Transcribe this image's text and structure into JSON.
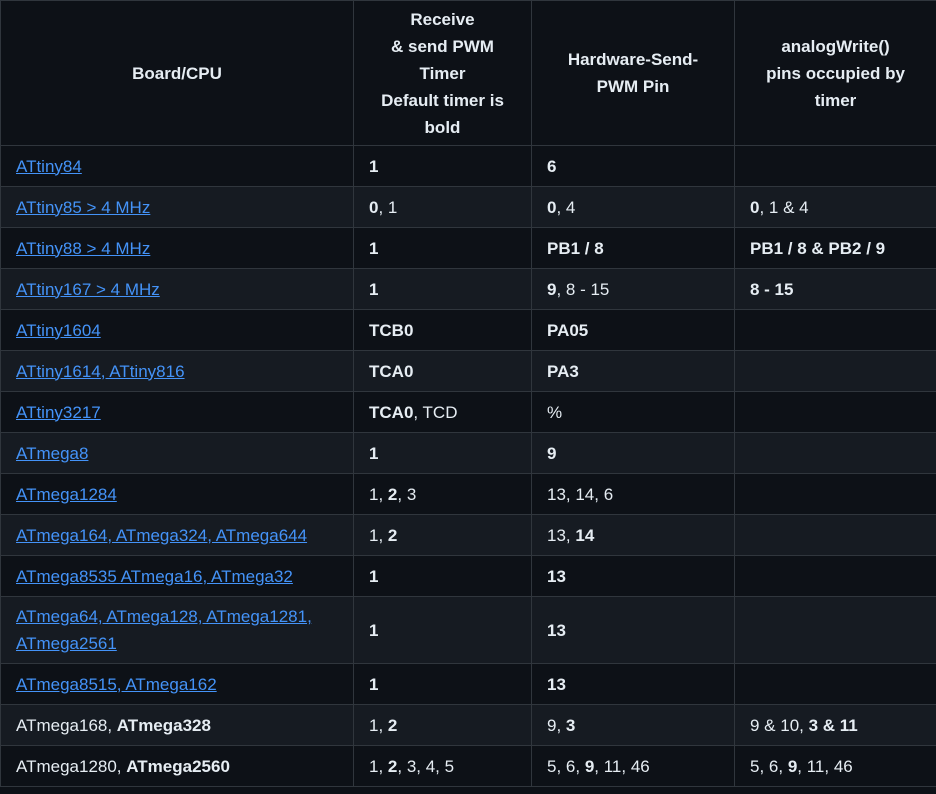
{
  "headers": [
    "Board/CPU",
    "Receive\n& send PWM\nTimer\nDefault timer is\nbold",
    "Hardware-Send-\nPWM Pin",
    "analogWrite()\npins occupied by\ntimer"
  ],
  "rows": [
    {
      "board": [
        {
          "t": "ATtiny84",
          "link": true
        }
      ],
      "timer": [
        {
          "t": "1",
          "b": true
        }
      ],
      "pin": [
        {
          "t": "6",
          "b": true
        }
      ],
      "aw": []
    },
    {
      "board": [
        {
          "t": "ATtiny85 > 4 MHz",
          "link": true
        }
      ],
      "timer": [
        {
          "t": "0",
          "b": true
        },
        {
          "t": ", 1"
        }
      ],
      "pin": [
        {
          "t": "0",
          "b": true
        },
        {
          "t": ", 4"
        }
      ],
      "aw": [
        {
          "t": "0",
          "b": true
        },
        {
          "t": ", 1 & 4"
        }
      ]
    },
    {
      "board": [
        {
          "t": "ATtiny88 > 4 MHz",
          "link": true
        }
      ],
      "timer": [
        {
          "t": "1",
          "b": true
        }
      ],
      "pin": [
        {
          "t": "PB1 / 8",
          "b": true
        }
      ],
      "aw": [
        {
          "t": "PB1 / 8 & PB2 / 9",
          "b": true
        }
      ]
    },
    {
      "board": [
        {
          "t": "ATtiny167 > 4 MHz",
          "link": true
        }
      ],
      "timer": [
        {
          "t": "1",
          "b": true
        }
      ],
      "pin": [
        {
          "t": "9",
          "b": true
        },
        {
          "t": ", 8 - 15"
        }
      ],
      "aw": [
        {
          "t": "8 - 15",
          "b": true
        }
      ]
    },
    {
      "board": [
        {
          "t": "ATtiny1604",
          "link": true
        }
      ],
      "timer": [
        {
          "t": "TCB0",
          "b": true
        }
      ],
      "pin": [
        {
          "t": "PA05",
          "b": true
        }
      ],
      "aw": []
    },
    {
      "board": [
        {
          "t": "ATtiny1614, ATtiny816",
          "link": true
        }
      ],
      "timer": [
        {
          "t": "TCA0",
          "b": true
        }
      ],
      "pin": [
        {
          "t": "PA3",
          "b": true
        }
      ],
      "aw": []
    },
    {
      "board": [
        {
          "t": "ATtiny3217",
          "link": true
        }
      ],
      "timer": [
        {
          "t": "TCA0",
          "b": true
        },
        {
          "t": ", TCD"
        }
      ],
      "pin": [
        {
          "t": "%"
        }
      ],
      "aw": []
    },
    {
      "board": [
        {
          "t": "ATmega8",
          "link": true
        }
      ],
      "timer": [
        {
          "t": "1",
          "b": true
        }
      ],
      "pin": [
        {
          "t": "9",
          "b": true
        }
      ],
      "aw": []
    },
    {
      "board": [
        {
          "t": "ATmega1284",
          "link": true
        }
      ],
      "timer": [
        {
          "t": "1, "
        },
        {
          "t": "2",
          "b": true
        },
        {
          "t": ", 3"
        }
      ],
      "pin": [
        {
          "t": "13, 14, 6"
        }
      ],
      "aw": []
    },
    {
      "board": [
        {
          "t": "ATmega164, ATmega324, ATmega644",
          "link": true
        }
      ],
      "timer": [
        {
          "t": "1, "
        },
        {
          "t": "2",
          "b": true
        }
      ],
      "pin": [
        {
          "t": "13, "
        },
        {
          "t": "14",
          "b": true
        }
      ],
      "aw": []
    },
    {
      "board": [
        {
          "t": "ATmega8535 ATmega16, ATmega32",
          "link": true
        }
      ],
      "timer": [
        {
          "t": "1",
          "b": true
        }
      ],
      "pin": [
        {
          "t": "13",
          "b": true
        }
      ],
      "aw": []
    },
    {
      "board": [
        {
          "t": "ATmega64, ATmega128, ATmega1281,\nATmega2561",
          "link": true
        }
      ],
      "timer": [
        {
          "t": "1",
          "b": true
        }
      ],
      "pin": [
        {
          "t": "13",
          "b": true
        }
      ],
      "aw": [],
      "tall": true
    },
    {
      "board": [
        {
          "t": "ATmega8515, ATmega162",
          "link": true
        }
      ],
      "timer": [
        {
          "t": "1",
          "b": true
        }
      ],
      "pin": [
        {
          "t": "13",
          "b": true
        }
      ],
      "aw": []
    },
    {
      "board": [
        {
          "t": "ATmega168, "
        },
        {
          "t": "ATmega328",
          "b": true
        }
      ],
      "timer": [
        {
          "t": "1, "
        },
        {
          "t": "2",
          "b": true
        }
      ],
      "pin": [
        {
          "t": "9, "
        },
        {
          "t": "3",
          "b": true
        }
      ],
      "aw": [
        {
          "t": "9 & 10, "
        },
        {
          "t": "3 & 11",
          "b": true
        }
      ]
    },
    {
      "board": [
        {
          "t": "ATmega1280, "
        },
        {
          "t": "ATmega2560",
          "b": true
        }
      ],
      "timer": [
        {
          "t": "1, "
        },
        {
          "t": "2",
          "b": true
        },
        {
          "t": ", 3, 4, 5"
        }
      ],
      "pin": [
        {
          "t": "5, 6, "
        },
        {
          "t": "9",
          "b": true
        },
        {
          "t": ", 11, 46"
        }
      ],
      "aw": [
        {
          "t": "5, 6, "
        },
        {
          "t": "9",
          "b": true
        },
        {
          "t": ", 11, 46"
        }
      ]
    }
  ]
}
